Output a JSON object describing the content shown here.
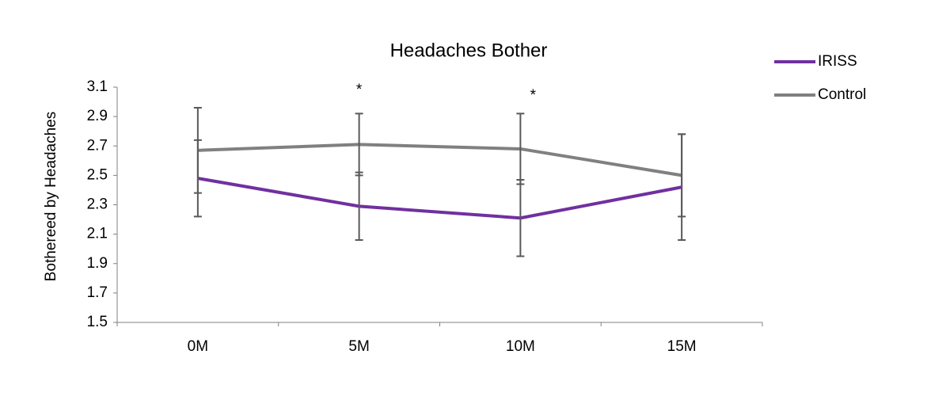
{
  "chart_data": {
    "type": "line",
    "title": "Headaches Bother",
    "y_label": "Bothereed by Headaches",
    "categories": [
      "0M",
      "5M",
      "10M",
      "15M"
    ],
    "series": [
      {
        "name": "IRISS",
        "color": "#7030a0",
        "values": [
          2.48,
          2.29,
          2.21,
          2.42
        ],
        "errors": [
          0.26,
          0.23,
          0.26,
          0.36
        ]
      },
      {
        "name": "Control",
        "color": "#808080",
        "values": [
          2.67,
          2.71,
          2.68,
          2.5
        ],
        "errors": [
          0.29,
          0.21,
          0.24,
          0.28
        ]
      }
    ],
    "error_color": "#595959",
    "ylim": [
      1.5,
      3.1
    ],
    "yticks": [
      1.5,
      1.7,
      1.9,
      2.1,
      2.3,
      2.5,
      2.7,
      2.9,
      3.1
    ],
    "grid": false,
    "legend": "right",
    "annotations": [
      {
        "text": "*",
        "category": "5M"
      },
      {
        "text": "*",
        "category": "10M"
      }
    ]
  }
}
